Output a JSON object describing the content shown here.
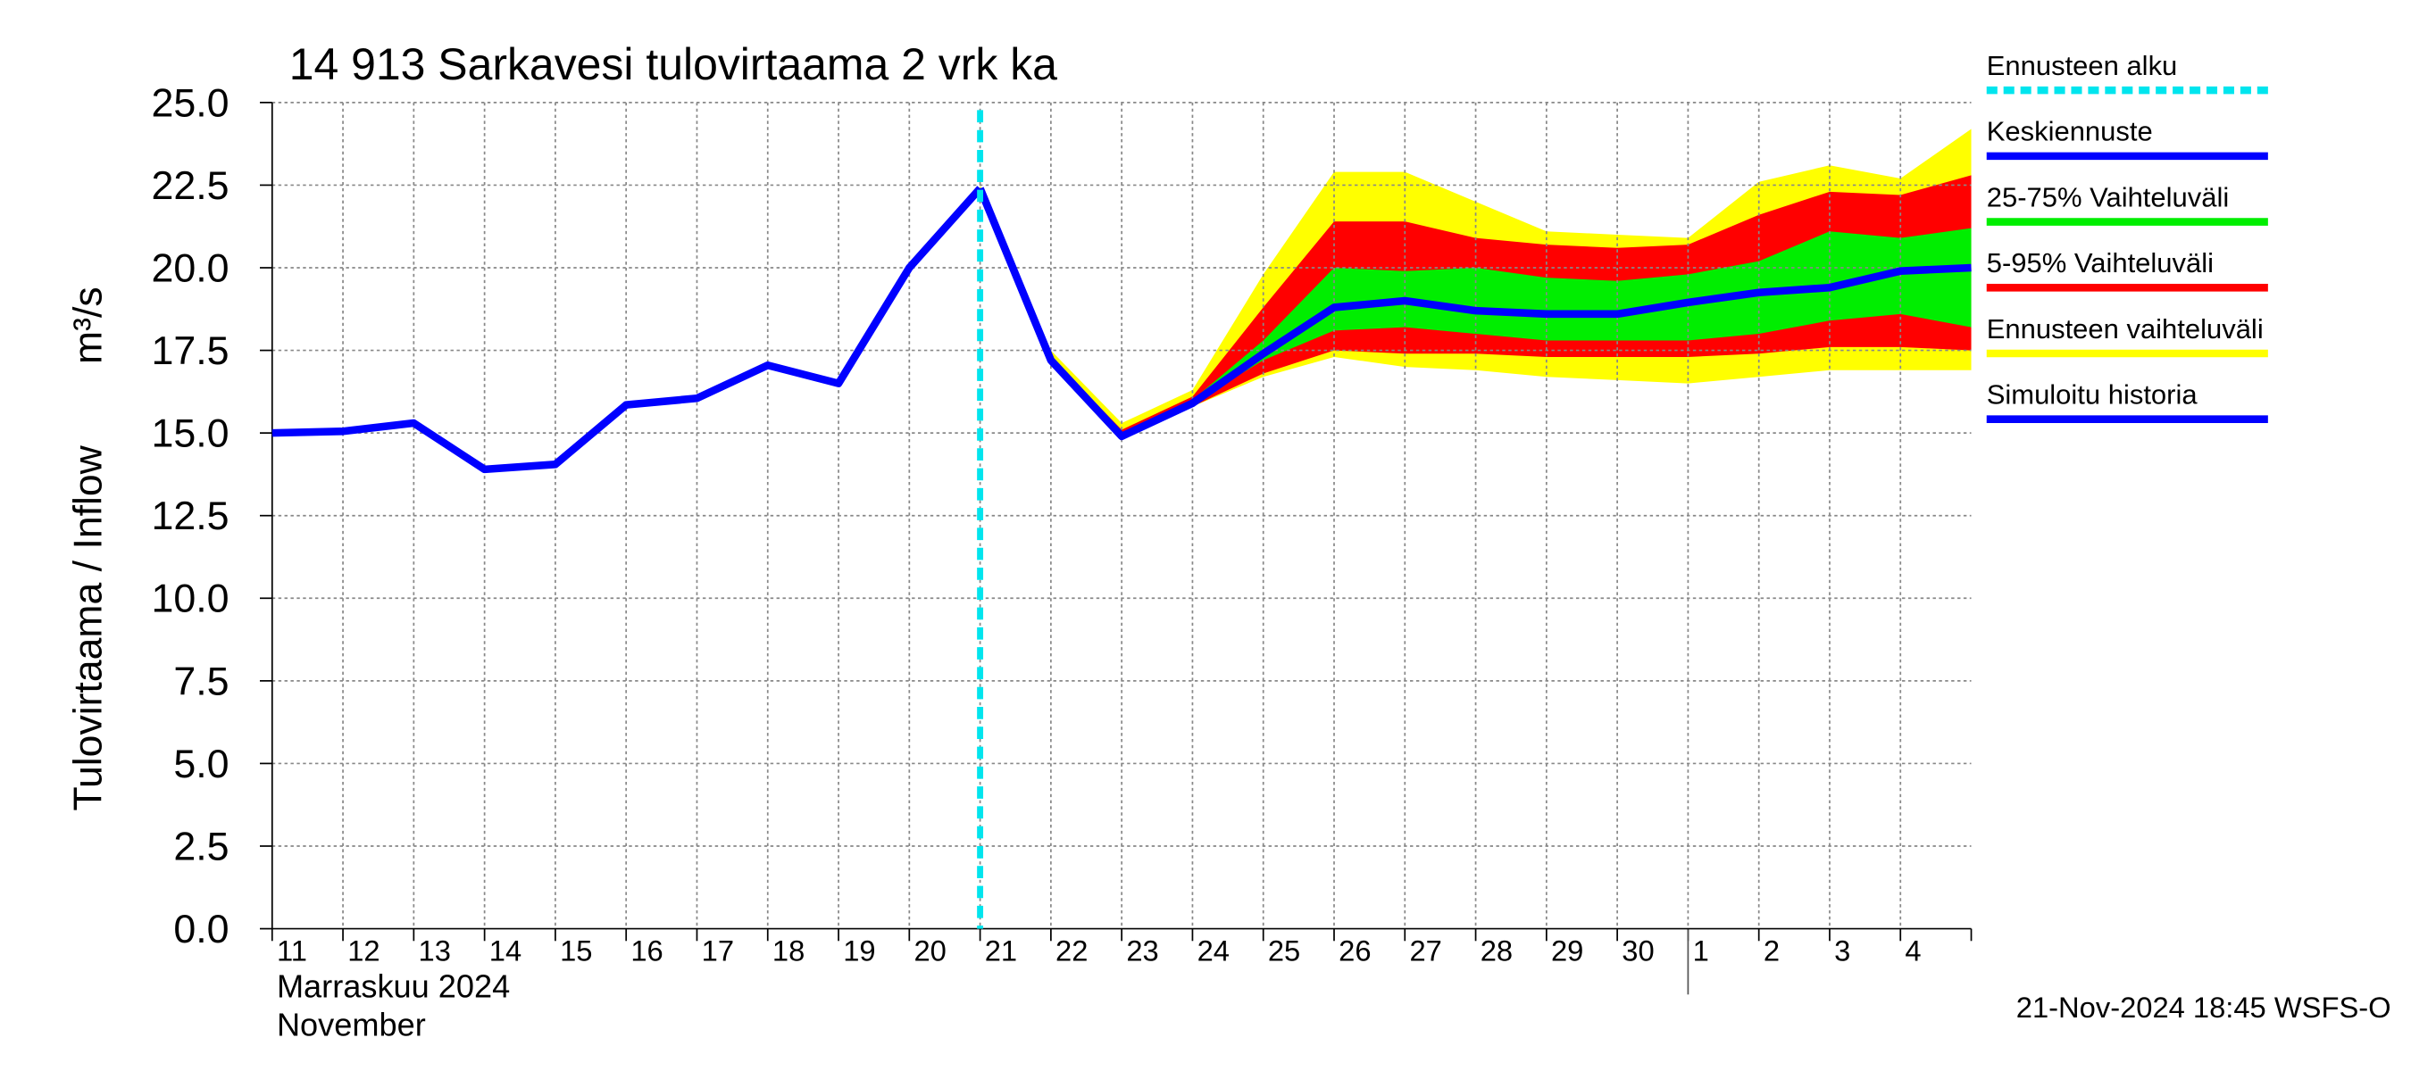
{
  "chart_data": {
    "type": "line",
    "title": "14 913 Sarkavesi tulovirtaama 2 vrk ka",
    "y_label": "Tulovirtaama / Inflow",
    "y_unit": "m³/s",
    "x_label": [
      "Marraskuu 2024",
      "November"
    ],
    "timestamp": "21-Nov-2024 18:45 WSFS-O",
    "categories": [
      "11",
      "12",
      "13",
      "14",
      "15",
      "16",
      "17",
      "18",
      "19",
      "20",
      "21",
      "22",
      "23",
      "24",
      "25",
      "26",
      "27",
      "28",
      "29",
      "30",
      "1",
      "2",
      "3",
      "4",
      null
    ],
    "ylim": [
      0,
      25
    ],
    "yticks": [
      {
        "value": 0,
        "label": "0.0"
      },
      {
        "value": 2.5,
        "label": "2.5"
      },
      {
        "value": 5,
        "label": "5.0"
      },
      {
        "value": 7.5,
        "label": "7.5"
      },
      {
        "value": 10,
        "label": "10.0"
      },
      {
        "value": 12.5,
        "label": "12.5"
      },
      {
        "value": 15,
        "label": "15.0"
      },
      {
        "value": 17.5,
        "label": "17.5"
      },
      {
        "value": 20,
        "label": "20.0"
      },
      {
        "value": 22.5,
        "label": "22.5"
      },
      {
        "value": 25,
        "label": "25.0"
      }
    ],
    "grid": true,
    "forecast_start": {
      "name": "Ennusteen alku",
      "color": "#00e5ee",
      "x": 10
    },
    "series": [
      {
        "name": "Keskiennuste",
        "color": "#0000ff",
        "values": [
          null,
          null,
          null,
          null,
          null,
          null,
          null,
          null,
          null,
          null,
          22.4,
          17.2,
          14.9,
          15.9,
          17.4,
          18.8,
          19.0,
          18.7,
          18.6,
          18.6,
          18.95,
          19.25,
          19.4,
          19.9,
          20.0
        ]
      },
      {
        "name": "Simuloitu historia",
        "color": "#0000ff",
        "values": [
          15.0,
          15.05,
          15.3,
          13.9,
          14.05,
          15.85,
          16.05,
          17.05,
          16.5,
          20.0,
          22.4,
          null,
          null,
          null,
          null,
          null,
          null,
          null,
          null,
          null,
          null,
          null,
          null,
          null,
          null
        ]
      }
    ],
    "bands": [
      {
        "name": "25-75% Vaihteluväli",
        "color": "#00ee00",
        "lower": [
          null,
          null,
          null,
          null,
          null,
          null,
          null,
          null,
          null,
          null,
          22.35,
          17.2,
          14.9,
          15.9,
          17.2,
          18.1,
          18.2,
          18.0,
          17.8,
          17.8,
          17.8,
          18.0,
          18.4,
          18.6,
          18.2
        ],
        "upper": [
          null,
          null,
          null,
          null,
          null,
          null,
          null,
          null,
          null,
          null,
          22.45,
          17.25,
          15.0,
          16.0,
          17.8,
          20.0,
          19.9,
          20.0,
          19.7,
          19.6,
          19.8,
          20.2,
          21.1,
          20.9,
          21.2
        ]
      },
      {
        "name": "5-95% Vaihteluväli",
        "color": "#ff0000",
        "lower": [
          null,
          null,
          null,
          null,
          null,
          null,
          null,
          null,
          null,
          null,
          22.3,
          17.1,
          14.8,
          15.8,
          16.8,
          17.5,
          17.4,
          17.4,
          17.3,
          17.3,
          17.3,
          17.4,
          17.6,
          17.6,
          17.5
        ],
        "upper": [
          null,
          null,
          null,
          null,
          null,
          null,
          null,
          null,
          null,
          null,
          22.4,
          17.3,
          15.1,
          16.1,
          18.8,
          21.4,
          21.4,
          20.9,
          20.7,
          20.6,
          20.7,
          21.6,
          22.3,
          22.2,
          22.8
        ]
      },
      {
        "name": "Ennusteen vaihteluväli",
        "color": "#ffff00",
        "lower": [
          null,
          null,
          null,
          null,
          null,
          null,
          null,
          null,
          null,
          null,
          22.3,
          17.1,
          14.8,
          15.8,
          16.7,
          17.3,
          17.0,
          16.9,
          16.7,
          16.6,
          16.5,
          16.7,
          16.9,
          16.9,
          16.9
        ],
        "upper": [
          null,
          null,
          null,
          null,
          null,
          null,
          null,
          null,
          null,
          null,
          22.5,
          17.5,
          15.3,
          16.3,
          19.8,
          22.9,
          22.9,
          22.0,
          21.1,
          21.0,
          20.9,
          22.6,
          23.1,
          22.7,
          24.2
        ]
      }
    ]
  }
}
